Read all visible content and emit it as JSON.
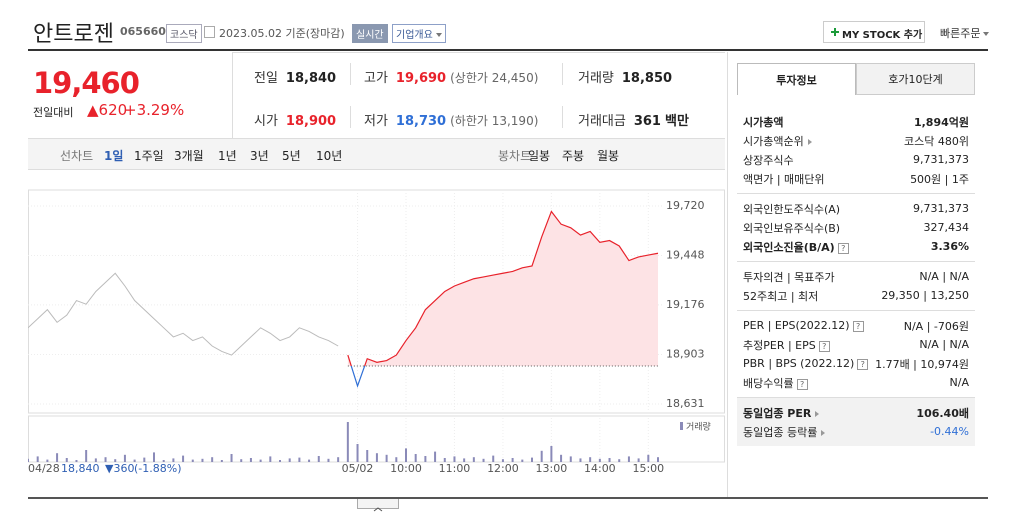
{
  "header": {
    "name": "안트로젠",
    "code": "065660",
    "market": "코스닥",
    "date_basis": "2023.05.02 기준(장마감)",
    "realtime": "실시간",
    "company_overview": "기업개요",
    "my_stock": "MY STOCK 추가",
    "quick_order": "빠른주문"
  },
  "price": {
    "current": "19,460",
    "change_caption": "전일대비",
    "change": "▲620",
    "change_pct": "+3.29%"
  },
  "summary": {
    "rows": [
      [
        {
          "label": "전일",
          "value": "18,840"
        },
        {
          "label": "고가",
          "value": "19,690",
          "note": "(상한가 24,450)"
        },
        {
          "label": "거래량",
          "value": "18,850"
        }
      ],
      [
        {
          "label": "시가",
          "value": "18,900"
        },
        {
          "label": "저가",
          "value": "18,730",
          "note": "(하한가 13,190)"
        },
        {
          "label": "거래대금",
          "value": "361",
          "unit": "백만"
        }
      ]
    ]
  },
  "tabs": {
    "line_label": "선차트",
    "line_periods": [
      "1일",
      "1주일",
      "3개월",
      "1년",
      "3년",
      "5년",
      "10년"
    ],
    "candle_label": "봉차트",
    "candle_periods": [
      "일봉",
      "주봉",
      "월봉"
    ]
  },
  "chart": {
    "type": "line",
    "categories": [
      "04/28",
      null,
      null,
      null,
      null,
      null,
      null,
      null,
      null,
      null,
      null,
      null,
      null,
      null,
      null,
      null,
      null,
      null,
      null,
      null,
      null,
      null,
      null,
      null,
      null,
      null,
      null,
      null,
      null,
      null,
      null,
      null,
      null,
      null,
      "05/02",
      null,
      null,
      null,
      null,
      "10:00",
      null,
      null,
      null,
      null,
      "11:00",
      null,
      null,
      null,
      null,
      "12:00",
      null,
      null,
      null,
      null,
      "13:00",
      null,
      null,
      null,
      null,
      "14:00",
      null,
      null,
      null,
      null,
      "15:00",
      null
    ],
    "series": [
      {
        "color": "#bbbbbb",
        "values": [
          19050,
          19100,
          19150,
          19080,
          19120,
          19200,
          19180,
          19250,
          19300,
          19350,
          19280,
          19200,
          19150,
          19100,
          19050,
          19000,
          19020,
          18980,
          19000,
          18950,
          18920,
          18900,
          18950,
          19000,
          19050,
          19020,
          18980,
          19000,
          19050,
          19030,
          19000,
          18980,
          18950,
          null,
          null,
          null,
          null,
          null,
          null,
          null,
          null,
          null,
          null,
          null,
          null,
          null,
          null,
          null,
          null,
          null,
          null,
          null,
          null,
          null,
          null,
          null,
          null,
          null,
          null,
          null,
          null,
          null,
          null,
          null,
          null,
          null
        ]
      },
      {
        "color": "#e8222b",
        "values": [
          null,
          null,
          null,
          null,
          null,
          null,
          null,
          null,
          null,
          null,
          null,
          null,
          null,
          null,
          null,
          null,
          null,
          null,
          null,
          null,
          null,
          null,
          null,
          null,
          null,
          null,
          null,
          null,
          null,
          null,
          null,
          null,
          null,
          18900,
          18730,
          18880,
          18860,
          18870,
          18900,
          18980,
          19050,
          19150,
          19200,
          19250,
          19280,
          19300,
          19320,
          19330,
          19340,
          19350,
          19360,
          19380,
          19390,
          19550,
          19690,
          19620,
          19600,
          19560,
          19580,
          19520,
          19530,
          19500,
          19420,
          19440,
          19450,
          19460
        ]
      }
    ],
    "base_line": 18840,
    "below_color": "#2f6fd6",
    "area_color": "#fde3e5",
    "ylim": [
      18631,
      19720
    ],
    "yticks": [
      {
        "value": 19720,
        "label": "19,720"
      },
      {
        "value": 19448,
        "label": "19,448"
      },
      {
        "value": 19176,
        "label": "19,176"
      },
      {
        "value": 18903,
        "label": "18,903"
      },
      {
        "value": 18631,
        "label": "18,631"
      }
    ],
    "volume": {
      "name": "거래량",
      "color": "#8a8ab8",
      "values": [
        8,
        14,
        6,
        22,
        10,
        5,
        30,
        9,
        12,
        7,
        18,
        6,
        11,
        24,
        5,
        9,
        16,
        6,
        8,
        12,
        5,
        20,
        7,
        10,
        6,
        14,
        5,
        9,
        11,
        6,
        15,
        8,
        12,
        100,
        45,
        30,
        22,
        18,
        12,
        34,
        20,
        15,
        26,
        10,
        14,
        9,
        12,
        8,
        16,
        7,
        10,
        6,
        11,
        28,
        40,
        18,
        14,
        9,
        12,
        8,
        10,
        7,
        14,
        9,
        18,
        12
      ]
    },
    "prev_info": {
      "close": "18,840",
      "change": "▼360",
      "change_pct": "(-1.88%)"
    }
  },
  "investment": {
    "tabs": [
      "투자정보",
      "호가10단계"
    ],
    "help_icon": "?",
    "groups": [
      [
        {
          "label": "시가총액",
          "value": "1,894억원"
        },
        {
          "label": "시가총액순위",
          "value": "코스닥 480위"
        },
        {
          "label": "상장주식수",
          "value": "9,731,373"
        },
        {
          "label": "액면가 | 매매단위",
          "value": "500원 | 1주"
        }
      ],
      [
        {
          "label": "외국인한도주식수(A)",
          "value": "9,731,373"
        },
        {
          "label": "외국인보유주식수(B)",
          "value": "327,434"
        },
        {
          "label": "외국인소진율(B/A)",
          "value": "3.36%"
        }
      ],
      [
        {
          "label": "투자의견 | 목표주가",
          "value": "N/A | N/A"
        },
        {
          "label": "52주최고 | 최저",
          "value": "29,350 | 13,250"
        }
      ],
      [
        {
          "label": "PER | EPS(2022.12)",
          "value": "N/A | -706원"
        },
        {
          "label": "추정PER | EPS",
          "value": "N/A | N/A"
        },
        {
          "label": "PBR | BPS (2022.12)",
          "value": "1.77배 | 10,974원"
        },
        {
          "label": "배당수익률",
          "value": "N/A"
        }
      ],
      [
        {
          "label": "동일업종 PER",
          "value": "106.40배"
        },
        {
          "label": "동일업종 등락률",
          "value": "-0.44%"
        }
      ]
    ]
  }
}
